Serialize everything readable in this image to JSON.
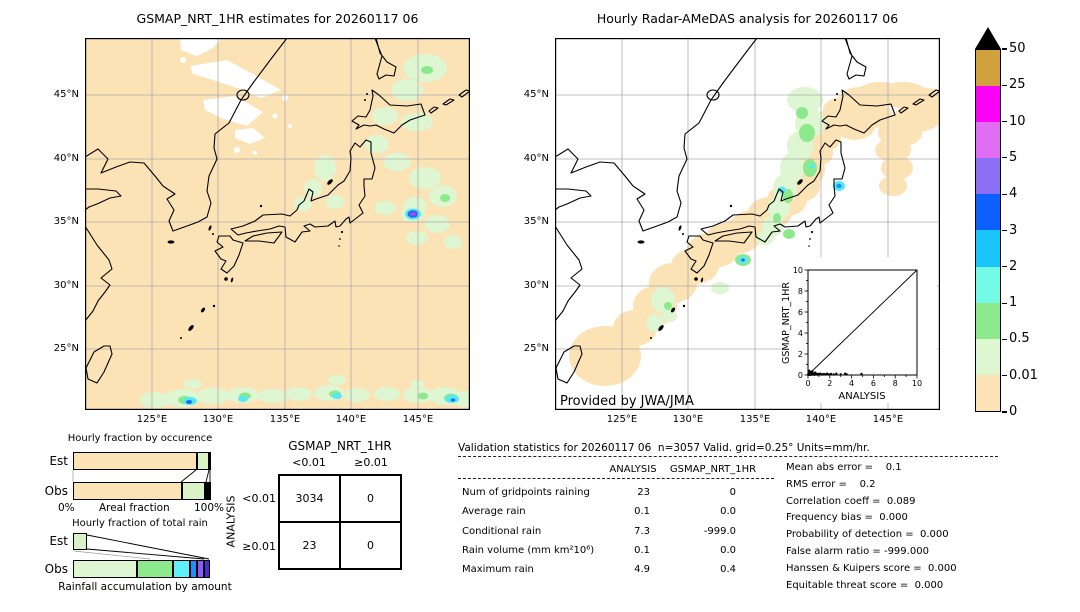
{
  "figure": {
    "left_map": {
      "title": "GSMAP_NRT_1HR estimates for 20260117 06",
      "x_tick_labels": [
        "125°E",
        "130°E",
        "135°E",
        "140°E",
        "145°E"
      ],
      "y_tick_labels": [
        "45°N",
        "40°N",
        "35°N",
        "30°N",
        "25°N"
      ]
    },
    "right_map": {
      "title": "Hourly Radar-AMeDAS analysis for 20260117 06",
      "credit": "Provided by JWA/JMA",
      "x_tick_labels": [
        "125°E",
        "130°E",
        "135°E",
        "140°E",
        "145°E"
      ],
      "y_tick_labels": [
        "45°N",
        "40°N",
        "35°N",
        "30°N",
        "25°N"
      ]
    },
    "colorbar": {
      "tick_labels": [
        "50",
        "25",
        "10",
        "5",
        "4",
        "3",
        "2",
        "1",
        "0.5",
        "0.01",
        "0"
      ],
      "segment_colors_top_to_bottom": [
        "#d0a13d",
        "#fb00f5",
        "#e06ef2",
        "#8a6ff5",
        "#0c60ff",
        "#19c5fb",
        "#74fbe6",
        "#8ce98c",
        "#def6d2",
        "#fce3b6"
      ],
      "overflow_marker_color": "#000000",
      "units": "mm/hr"
    },
    "panels": {
      "occurrence": {
        "title": "Hourly fraction by occurence",
        "row_labels": [
          "Est",
          "Obs"
        ],
        "x_min_label": "0%",
        "x_axis_label": "Areal fraction",
        "x_max_label": "100%"
      },
      "total_rain": {
        "title": "Hourly fraction of total rain",
        "row_labels": [
          "Est",
          "Obs"
        ],
        "caption": "Rainfall accumulation by amount"
      }
    },
    "contingency": {
      "col_group_label": "GSMAP_NRT_1HR",
      "row_group_label": "ANALYSIS",
      "col_labels": [
        "<0.01",
        "≥0.01"
      ],
      "row_labels": [
        "<0.01",
        "≥0.01"
      ],
      "cells": [
        [
          "3034",
          "0"
        ],
        [
          "23",
          "0"
        ]
      ]
    },
    "validation": {
      "header": "Validation statistics for 20260117 06  n=3057 Valid. grid=0.25° Units=mm/hr.",
      "col_headers": [
        "ANALYSIS",
        "GSMAP_NRT_1HR"
      ],
      "rows": [
        {
          "label": "Num of gridpoints raining",
          "analysis": "23",
          "gsmap": "0"
        },
        {
          "label": "Average rain",
          "analysis": "0.1",
          "gsmap": "0.0"
        },
        {
          "label": "Conditional rain",
          "analysis": "7.3",
          "gsmap": "-999.0"
        },
        {
          "label": "Rain volume (mm km²10⁶)",
          "analysis": "0.1",
          "gsmap": "0.0"
        },
        {
          "label": "Maximum rain",
          "analysis": "4.9",
          "gsmap": "0.4"
        }
      ],
      "scores": [
        "Mean abs error =    0.1",
        "RMS error =    0.2",
        "Correlation coeff =  0.089",
        "Frequency bias =  0.000",
        "Probability of detection =  0.000",
        "False alarm ratio = -999.000",
        "Hanssen & Kuipers score =  0.000",
        "Equitable threat score =  0.000"
      ]
    },
    "inset": {
      "xlabel": "ANALYSIS",
      "ylabel": "GSMAP_NRT_1HR",
      "x_tick_labels": [
        "0",
        "2",
        "4",
        "6",
        "8",
        "10"
      ],
      "y_tick_labels": [
        "0",
        "2",
        "4",
        "6",
        "8",
        "10"
      ]
    }
  },
  "chart_data": [
    {
      "type": "heatmap",
      "title": "GSMAP_NRT_1HR estimates for 20260117 06",
      "units": "mm/hr",
      "x_ticks": [
        "125°E",
        "130°E",
        "135°E",
        "140°E",
        "145°E"
      ],
      "y_ticks": [
        "45°N",
        "40°N",
        "35°N",
        "30°N",
        "25°N"
      ],
      "levels": [
        0,
        0.01,
        0.5,
        1,
        2,
        3,
        4,
        5,
        10,
        25,
        50
      ],
      "level_colors_low_to_high": [
        "#fce3b6",
        "#def6d2",
        "#8ce98c",
        "#74fbe6",
        "#19c5fb",
        "#0c60ff",
        "#8a6ff5",
        "#e06ef2",
        "#fb00f5",
        "#d0a13d"
      ],
      "summary": "Trace rain (0-0.01 mm/hr, peach) over nearly the whole domain; light rain (0.01-1) patches east of Hokkaido, along the Sea of Japan coast and across the southern map edge with small 1-3 mm/hr cells; one isolated cell up to ~5-10 mm/hr near 144.5E 35.5N; white no-data patches over northeast Asia interior."
    },
    {
      "type": "heatmap",
      "title": "Hourly Radar-AMeDAS analysis for 20260117 06",
      "units": "mm/hr",
      "credit": "Provided by JWA/JMA",
      "summary": "SW-NE rain band along the Japanese archipelago from Okinawa to Hokkaido and east of Tohoku; mostly trace to 0.5 mm/hr with embedded 0.5-3 mm/hr cells over northern Japan and south of the Kii peninsula; dry (white) elsewhere."
    },
    {
      "type": "scatter",
      "title": "Gridpoint comparison inset",
      "xlabel": "ANALYSIS",
      "ylabel": "GSMAP_NRT_1HR",
      "xlim": [
        0,
        10
      ],
      "ylim": [
        0,
        10
      ],
      "x_ticks": [
        0,
        2,
        4,
        6,
        8,
        10
      ],
      "y_ticks": [
        0,
        2,
        4,
        6,
        8,
        10
      ],
      "identity_line": true,
      "points": [
        [
          0.02,
          0.02
        ],
        [
          0.04,
          0.08
        ],
        [
          0.06,
          0.03
        ],
        [
          0.08,
          0.12
        ],
        [
          0.1,
          0.05
        ],
        [
          0.1,
          0.4
        ],
        [
          0.12,
          0.18
        ],
        [
          0.14,
          0.02
        ],
        [
          0.16,
          0.09
        ],
        [
          0.18,
          0.25
        ],
        [
          0.2,
          0.04
        ],
        [
          0.22,
          0.3
        ],
        [
          0.25,
          0.12
        ],
        [
          0.28,
          0.06
        ],
        [
          0.3,
          0.2
        ],
        [
          0.33,
          0.02
        ],
        [
          0.36,
          0.1
        ],
        [
          0.4,
          0.35
        ],
        [
          0.44,
          0.05
        ],
        [
          0.5,
          0.15
        ],
        [
          0.55,
          0.08
        ],
        [
          0.6,
          0.02
        ],
        [
          0.65,
          0.22
        ],
        [
          0.7,
          0.05
        ],
        [
          0.78,
          0.12
        ],
        [
          0.85,
          0.03
        ],
        [
          0.95,
          0.1
        ],
        [
          1.05,
          0.05
        ],
        [
          1.15,
          0.12
        ],
        [
          1.3,
          0.04
        ],
        [
          1.45,
          0.1
        ],
        [
          1.6,
          0.05
        ],
        [
          1.75,
          0.12
        ],
        [
          1.9,
          0.05
        ],
        [
          2.1,
          0.1
        ],
        [
          2.35,
          0.05
        ],
        [
          2.6,
          0.12
        ],
        [
          3.0,
          0.06
        ],
        [
          3.4,
          0.12
        ],
        [
          3.55,
          0.05
        ],
        [
          4.9,
          0.1
        ]
      ]
    },
    {
      "type": "bar",
      "title": "Hourly fraction by occurence",
      "axis": "Areal fraction",
      "rows": [
        "Est",
        "Obs"
      ],
      "est_segments": [
        {
          "level": "0-0.01",
          "frac": 0.905,
          "color": "#fce3b6"
        },
        {
          "level": "0.01-0.5",
          "frac": 0.085,
          "color": "#d9f3c6"
        },
        {
          "level": "0.5-1",
          "frac": 0.01,
          "color": "#8ce98c"
        }
      ],
      "obs_segments": [
        {
          "level": "0-0.01",
          "frac": 0.795,
          "color": "#fce3b6"
        },
        {
          "level": "0.01-0.5",
          "frac": 0.165,
          "color": "#d9f3c6"
        },
        {
          "level": "0.5-1",
          "frac": 0.02,
          "color": "#8ce98c"
        },
        {
          "level": "1-2",
          "frac": 0.012,
          "color": "#74fbe6"
        },
        {
          "level": "2-4",
          "frac": 0.008,
          "color": "#0c60ff"
        }
      ]
    },
    {
      "type": "bar",
      "title": "Hourly fraction of total rain",
      "axis": "Rainfall accumulation by amount",
      "rows": [
        "Est",
        "Obs"
      ],
      "est_segments": [
        {
          "level": "0.01-0.5",
          "frac": 0.1,
          "color": "#d9f3c6"
        }
      ],
      "obs_segments": [
        {
          "level": "0.01-0.5",
          "frac": 0.47,
          "color": "#def6d2"
        },
        {
          "level": "0.5-1",
          "frac": 0.26,
          "color": "#8ce98c"
        },
        {
          "level": "1-2",
          "frac": 0.125,
          "color": "#5ff0fa"
        },
        {
          "level": "2-3",
          "frac": 0.05,
          "color": "#1e90ff"
        },
        {
          "level": "3-5",
          "frac": 0.05,
          "color": "#8a5cf5"
        },
        {
          "level": "5-10",
          "frac": 0.045,
          "color": "#4a2bd0"
        }
      ]
    },
    {
      "type": "table",
      "title": "Contingency table (gridpoint counts)",
      "columns": [
        "GSMAP_NRT_1HR <0.01",
        "GSMAP_NRT_1HR ≥0.01"
      ],
      "rows": [
        "ANALYSIS <0.01",
        "ANALYSIS ≥0.01"
      ],
      "values": [
        [
          3034,
          0
        ],
        [
          23,
          0
        ]
      ]
    }
  ]
}
